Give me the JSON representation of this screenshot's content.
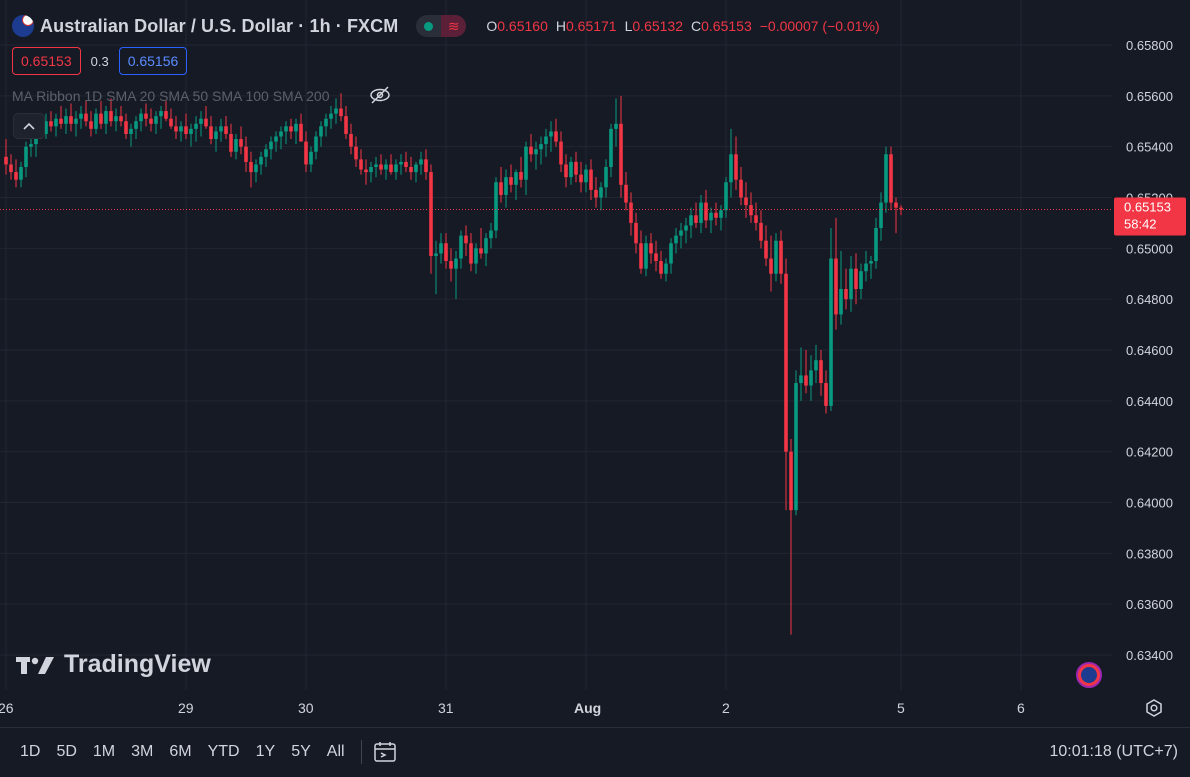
{
  "header": {
    "symbol_title": "Australian Dollar / U.S. Dollar · 1h · FXCM",
    "ohlc": {
      "o_label": "O",
      "o_value": "0.65160",
      "h_label": "H",
      "h_value": "0.65171",
      "l_label": "L",
      "l_value": "0.65132",
      "c_label": "C",
      "c_value": "0.65153",
      "change": "−0.00007 (−0.01%)"
    },
    "sell_price": "0.65153",
    "spread": "0.3",
    "buy_price": "0.65156",
    "indicator_label": "MA Ribbon 1D SMA 20 SMA 50 SMA 100 SMA 200"
  },
  "logo_text": "TradingView",
  "current_price_label": {
    "price": "0.65153",
    "countdown": "58:42"
  },
  "bottom_bar": {
    "ranges": [
      "1D",
      "5D",
      "1M",
      "3M",
      "6M",
      "YTD",
      "1Y",
      "5Y",
      "All"
    ],
    "clock": "10:01:18 (UTC+7)"
  },
  "colors": {
    "background": "#161a25",
    "up": "#089981",
    "down": "#f23645",
    "grid": "#232632",
    "text": "#d1d4dc"
  },
  "icons": [
    "flag-icon",
    "chevron-up-icon",
    "eye-off-icon",
    "calendar-goto-icon",
    "settings-icon"
  ],
  "chart_data": {
    "type": "candlestick",
    "title": "Australian Dollar / U.S. Dollar · 1h · FXCM",
    "timeframe": "1h",
    "y_ticks": [
      "0.65800",
      "0.65600",
      "0.65400",
      "0.65200",
      "0.65000",
      "0.64800",
      "0.64600",
      "0.64400",
      "0.64200",
      "0.64000",
      "0.63800",
      "0.63600",
      "0.63400"
    ],
    "ylim": [
      0.633,
      0.6598
    ],
    "x_ticks": [
      {
        "label": "26",
        "idx": 0
      },
      {
        "label": "29",
        "idx": 36
      },
      {
        "label": "30",
        "idx": 60
      },
      {
        "label": "31",
        "idx": 88
      },
      {
        "label": "Aug",
        "idx": 116
      },
      {
        "label": "2",
        "idx": 144
      },
      {
        "label": "5",
        "idx": 179
      },
      {
        "label": "6",
        "idx": 203
      }
    ],
    "last_price": 0.65153,
    "candles": [
      [
        0.6536,
        0.6543,
        0.6529,
        0.6533
      ],
      [
        0.6533,
        0.6537,
        0.6527,
        0.653
      ],
      [
        0.653,
        0.6535,
        0.6524,
        0.6527
      ],
      [
        0.6527,
        0.6534,
        0.6524,
        0.6532
      ],
      [
        0.6532,
        0.6542,
        0.6528,
        0.654
      ],
      [
        0.654,
        0.6546,
        0.6536,
        0.6541
      ],
      [
        0.6541,
        0.655,
        0.6536,
        0.6548
      ],
      [
        0.6548,
        0.6551,
        0.6543,
        0.6545
      ],
      [
        0.6545,
        0.6553,
        0.6543,
        0.655
      ],
      [
        0.655,
        0.6554,
        0.6546,
        0.6548
      ],
      [
        0.6548,
        0.6553,
        0.6544,
        0.6551
      ],
      [
        0.6551,
        0.6556,
        0.6547,
        0.6549
      ],
      [
        0.6549,
        0.6555,
        0.6545,
        0.6552
      ],
      [
        0.6552,
        0.6557,
        0.6546,
        0.6549
      ],
      [
        0.6549,
        0.6554,
        0.6544,
        0.6551
      ],
      [
        0.6551,
        0.6556,
        0.6547,
        0.6553
      ],
      [
        0.6553,
        0.6558,
        0.6548,
        0.655
      ],
      [
        0.655,
        0.6554,
        0.6544,
        0.6547
      ],
      [
        0.6547,
        0.6555,
        0.6545,
        0.6553
      ],
      [
        0.6553,
        0.6558,
        0.6547,
        0.6549
      ],
      [
        0.6549,
        0.6556,
        0.6545,
        0.6554
      ],
      [
        0.6554,
        0.6559,
        0.6548,
        0.655
      ],
      [
        0.655,
        0.6555,
        0.6546,
        0.6552
      ],
      [
        0.6552,
        0.6556,
        0.6548,
        0.655
      ],
      [
        0.655,
        0.6553,
        0.6543,
        0.6545
      ],
      [
        0.6545,
        0.6549,
        0.654,
        0.6547
      ],
      [
        0.6547,
        0.6552,
        0.6543,
        0.655
      ],
      [
        0.655,
        0.6555,
        0.6546,
        0.6553
      ],
      [
        0.6553,
        0.6557,
        0.6548,
        0.6551
      ],
      [
        0.6551,
        0.6555,
        0.6546,
        0.6549
      ],
      [
        0.6549,
        0.6554,
        0.6545,
        0.6552
      ],
      [
        0.6552,
        0.6556,
        0.6547,
        0.6554
      ],
      [
        0.6554,
        0.6558,
        0.655,
        0.6551
      ],
      [
        0.6551,
        0.6555,
        0.6547,
        0.6548
      ],
      [
        0.6548,
        0.6552,
        0.6543,
        0.6546
      ],
      [
        0.6546,
        0.655,
        0.6542,
        0.6548
      ],
      [
        0.6548,
        0.6553,
        0.6543,
        0.6545
      ],
      [
        0.6545,
        0.6549,
        0.654,
        0.6547
      ],
      [
        0.6547,
        0.6552,
        0.6542,
        0.6549
      ],
      [
        0.6549,
        0.6554,
        0.6544,
        0.6551
      ],
      [
        0.6551,
        0.6556,
        0.6547,
        0.6548
      ],
      [
        0.6548,
        0.6552,
        0.6541,
        0.6543
      ],
      [
        0.6543,
        0.6548,
        0.6538,
        0.6546
      ],
      [
        0.6546,
        0.6551,
        0.6542,
        0.6548
      ],
      [
        0.6548,
        0.6552,
        0.6543,
        0.6545
      ],
      [
        0.6545,
        0.6549,
        0.6536,
        0.6538
      ],
      [
        0.6538,
        0.6545,
        0.6535,
        0.6543
      ],
      [
        0.6543,
        0.6548,
        0.6537,
        0.654
      ],
      [
        0.654,
        0.6544,
        0.653,
        0.6534
      ],
      [
        0.6534,
        0.6538,
        0.6524,
        0.653
      ],
      [
        0.653,
        0.6535,
        0.6526,
        0.6533
      ],
      [
        0.6533,
        0.6538,
        0.6529,
        0.6536
      ],
      [
        0.6536,
        0.6541,
        0.6532,
        0.6539
      ],
      [
        0.6539,
        0.6544,
        0.6535,
        0.6542
      ],
      [
        0.6542,
        0.6546,
        0.6538,
        0.6544
      ],
      [
        0.6544,
        0.6548,
        0.6539,
        0.6546
      ],
      [
        0.6546,
        0.655,
        0.6541,
        0.6548
      ],
      [
        0.6548,
        0.6551,
        0.6543,
        0.6546
      ],
      [
        0.6546,
        0.6551,
        0.6541,
        0.6549
      ],
      [
        0.6549,
        0.6553,
        0.6544,
        0.6542
      ],
      [
        0.6542,
        0.6546,
        0.653,
        0.6533
      ],
      [
        0.6533,
        0.654,
        0.653,
        0.6538
      ],
      [
        0.6538,
        0.6546,
        0.6535,
        0.6544
      ],
      [
        0.6544,
        0.655,
        0.654,
        0.6548
      ],
      [
        0.6548,
        0.6553,
        0.6544,
        0.6551
      ],
      [
        0.6551,
        0.6556,
        0.6547,
        0.6553
      ],
      [
        0.6553,
        0.6559,
        0.6549,
        0.6555
      ],
      [
        0.6555,
        0.6561,
        0.655,
        0.6552
      ],
      [
        0.6552,
        0.6556,
        0.6543,
        0.6545
      ],
      [
        0.6545,
        0.6549,
        0.6537,
        0.654
      ],
      [
        0.654,
        0.6544,
        0.6532,
        0.6535
      ],
      [
        0.6535,
        0.6539,
        0.6529,
        0.6531
      ],
      [
        0.6531,
        0.6535,
        0.6525,
        0.653
      ],
      [
        0.653,
        0.6534,
        0.6526,
        0.6532
      ],
      [
        0.6532,
        0.6536,
        0.6528,
        0.6533
      ],
      [
        0.6533,
        0.6537,
        0.6529,
        0.6531
      ],
      [
        0.6531,
        0.6535,
        0.6527,
        0.6533
      ],
      [
        0.6533,
        0.6537,
        0.6529,
        0.653
      ],
      [
        0.653,
        0.6535,
        0.6527,
        0.6533
      ],
      [
        0.6533,
        0.6537,
        0.6529,
        0.6534
      ],
      [
        0.6534,
        0.6538,
        0.653,
        0.6532
      ],
      [
        0.6532,
        0.6536,
        0.6527,
        0.653
      ],
      [
        0.653,
        0.6534,
        0.6526,
        0.6533
      ],
      [
        0.6533,
        0.6538,
        0.6529,
        0.6535
      ],
      [
        0.6535,
        0.6539,
        0.6527,
        0.653
      ],
      [
        0.653,
        0.6533,
        0.649,
        0.6497
      ],
      [
        0.6497,
        0.6503,
        0.6482,
        0.6498
      ],
      [
        0.6498,
        0.6506,
        0.6494,
        0.6502
      ],
      [
        0.6502,
        0.6506,
        0.6492,
        0.6495
      ],
      [
        0.6495,
        0.65,
        0.6487,
        0.6492
      ],
      [
        0.6492,
        0.6499,
        0.648,
        0.6496
      ],
      [
        0.6496,
        0.6507,
        0.6492,
        0.6505
      ],
      [
        0.6505,
        0.6509,
        0.6497,
        0.6502
      ],
      [
        0.6502,
        0.6506,
        0.6491,
        0.6494
      ],
      [
        0.6494,
        0.6502,
        0.649,
        0.65
      ],
      [
        0.65,
        0.6508,
        0.6496,
        0.6498
      ],
      [
        0.6498,
        0.6506,
        0.6493,
        0.6504
      ],
      [
        0.6504,
        0.651,
        0.65,
        0.6507
      ],
      [
        0.6507,
        0.6528,
        0.6504,
        0.6526
      ],
      [
        0.6526,
        0.6532,
        0.6518,
        0.6521
      ],
      [
        0.6521,
        0.6531,
        0.6516,
        0.6528
      ],
      [
        0.6528,
        0.6533,
        0.6522,
        0.6525
      ],
      [
        0.6525,
        0.6531,
        0.6519,
        0.653
      ],
      [
        0.653,
        0.6536,
        0.6524,
        0.6527
      ],
      [
        0.6527,
        0.6542,
        0.6521,
        0.654
      ],
      [
        0.654,
        0.6545,
        0.6534,
        0.6537
      ],
      [
        0.6537,
        0.6542,
        0.6531,
        0.6539
      ],
      [
        0.6539,
        0.6544,
        0.6533,
        0.6541
      ],
      [
        0.6541,
        0.6547,
        0.6536,
        0.6544
      ],
      [
        0.6544,
        0.655,
        0.6538,
        0.6546
      ],
      [
        0.6546,
        0.6551,
        0.654,
        0.6542
      ],
      [
        0.6542,
        0.6546,
        0.653,
        0.6533
      ],
      [
        0.6533,
        0.6537,
        0.6524,
        0.6528
      ],
      [
        0.6528,
        0.6536,
        0.6525,
        0.6534
      ],
      [
        0.6534,
        0.6538,
        0.6526,
        0.6529
      ],
      [
        0.6529,
        0.6534,
        0.6522,
        0.6526
      ],
      [
        0.6526,
        0.6533,
        0.6522,
        0.6531
      ],
      [
        0.6531,
        0.6535,
        0.6519,
        0.6523
      ],
      [
        0.6523,
        0.6528,
        0.6516,
        0.652
      ],
      [
        0.652,
        0.6526,
        0.6515,
        0.6524
      ],
      [
        0.6524,
        0.6535,
        0.652,
        0.6532
      ],
      [
        0.6532,
        0.6549,
        0.6528,
        0.6547
      ],
      [
        0.6547,
        0.6559,
        0.654,
        0.6549
      ],
      [
        0.6549,
        0.656,
        0.652,
        0.6525
      ],
      [
        0.6525,
        0.653,
        0.6515,
        0.6518
      ],
      [
        0.6518,
        0.6522,
        0.6505,
        0.651
      ],
      [
        0.651,
        0.6514,
        0.6498,
        0.6502
      ],
      [
        0.6502,
        0.6507,
        0.649,
        0.6492
      ],
      [
        0.6492,
        0.6505,
        0.6489,
        0.6502
      ],
      [
        0.6502,
        0.6506,
        0.6494,
        0.6498
      ],
      [
        0.6498,
        0.6503,
        0.6491,
        0.6495
      ],
      [
        0.6495,
        0.6499,
        0.6488,
        0.649
      ],
      [
        0.649,
        0.6496,
        0.6487,
        0.6494
      ],
      [
        0.6494,
        0.6504,
        0.649,
        0.6502
      ],
      [
        0.6502,
        0.6508,
        0.6498,
        0.6505
      ],
      [
        0.6505,
        0.651,
        0.65,
        0.6507
      ],
      [
        0.6507,
        0.6512,
        0.6502,
        0.6509
      ],
      [
        0.6509,
        0.6516,
        0.6504,
        0.6513
      ],
      [
        0.6513,
        0.6518,
        0.6508,
        0.651
      ],
      [
        0.651,
        0.6521,
        0.6506,
        0.6518
      ],
      [
        0.6518,
        0.6523,
        0.6508,
        0.6511
      ],
      [
        0.6511,
        0.6516,
        0.6506,
        0.6514
      ],
      [
        0.6514,
        0.6518,
        0.6509,
        0.6512
      ],
      [
        0.6512,
        0.6517,
        0.6507,
        0.6515
      ],
      [
        0.6515,
        0.6528,
        0.6512,
        0.6526
      ],
      [
        0.6526,
        0.6547,
        0.652,
        0.6537
      ],
      [
        0.6537,
        0.6544,
        0.6523,
        0.6527
      ],
      [
        0.6527,
        0.6532,
        0.6517,
        0.652
      ],
      [
        0.652,
        0.6526,
        0.6512,
        0.6517
      ],
      [
        0.6517,
        0.6522,
        0.651,
        0.6513
      ],
      [
        0.6513,
        0.6518,
        0.6507,
        0.651
      ],
      [
        0.651,
        0.6515,
        0.65,
        0.6503
      ],
      [
        0.6503,
        0.6509,
        0.6493,
        0.6496
      ],
      [
        0.6496,
        0.6505,
        0.6483,
        0.649
      ],
      [
        0.649,
        0.6506,
        0.6487,
        0.6503
      ],
      [
        0.6503,
        0.6507,
        0.6486,
        0.649
      ],
      [
        0.649,
        0.6496,
        0.6397,
        0.642
      ],
      [
        0.642,
        0.6425,
        0.6348,
        0.6397
      ],
      [
        0.6397,
        0.6452,
        0.6395,
        0.6447
      ],
      [
        0.6447,
        0.6461,
        0.644,
        0.645
      ],
      [
        0.645,
        0.646,
        0.6443,
        0.6446
      ],
      [
        0.6446,
        0.6458,
        0.644,
        0.6452
      ],
      [
        0.6452,
        0.6462,
        0.6447,
        0.6456
      ],
      [
        0.6456,
        0.646,
        0.6442,
        0.6447
      ],
      [
        0.6447,
        0.6452,
        0.6435,
        0.6438
      ],
      [
        0.6438,
        0.6508,
        0.6436,
        0.6496
      ],
      [
        0.6496,
        0.6512,
        0.6468,
        0.6474
      ],
      [
        0.6474,
        0.6499,
        0.647,
        0.6484
      ],
      [
        0.6484,
        0.6492,
        0.6476,
        0.648
      ],
      [
        0.648,
        0.6497,
        0.6475,
        0.6492
      ],
      [
        0.6492,
        0.6498,
        0.6478,
        0.6484
      ],
      [
        0.6484,
        0.6494,
        0.648,
        0.6491
      ],
      [
        0.6491,
        0.6499,
        0.6487,
        0.6494
      ],
      [
        0.6494,
        0.6497,
        0.6488,
        0.6495
      ],
      [
        0.6495,
        0.6512,
        0.6492,
        0.6508
      ],
      [
        0.6508,
        0.6522,
        0.6503,
        0.6518
      ],
      [
        0.6518,
        0.654,
        0.6514,
        0.6537
      ],
      [
        0.6537,
        0.654,
        0.6515,
        0.6518
      ],
      [
        0.6518,
        0.652,
        0.6506,
        0.6516
      ],
      [
        0.6516,
        0.6517,
        0.6513,
        0.65153
      ]
    ]
  }
}
